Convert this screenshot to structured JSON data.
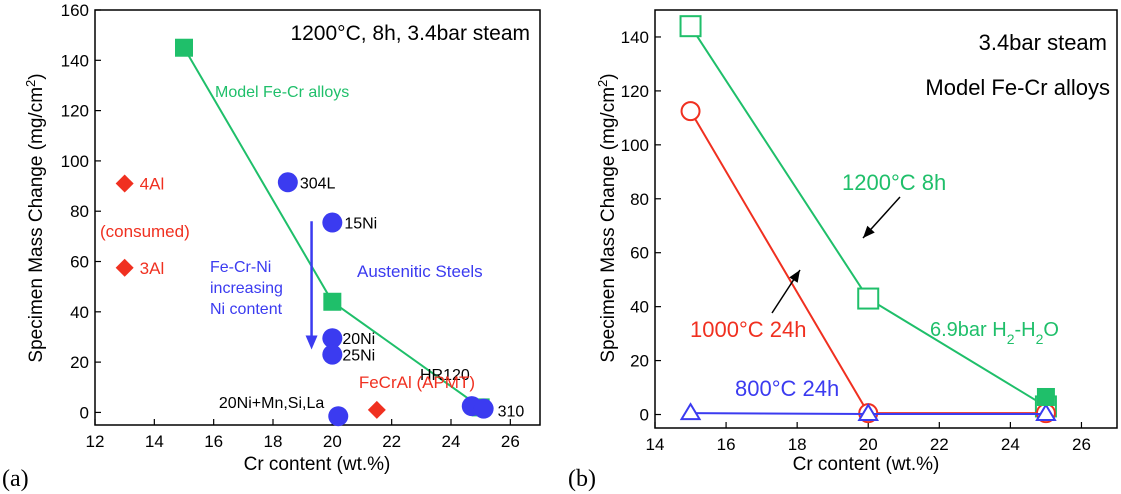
{
  "figure": {
    "panel_a_label": "(a)",
    "panel_b_label": "(b)"
  },
  "colors": {
    "green": "#1fbf6a",
    "blue": "#3b3bf0",
    "red": "#f03020"
  },
  "chart_data": [
    {
      "type": "scatter",
      "panel": "(a)",
      "xlabel": "Cr content (wt.%)",
      "ylabel": "Specimen Mass Change (mg/cm²)",
      "xlim": [
        12,
        27
      ],
      "ylim": [
        -5,
        160
      ],
      "xticks": [
        12,
        14,
        16,
        18,
        20,
        22,
        24,
        26
      ],
      "yticks": [
        0,
        20,
        40,
        60,
        80,
        100,
        120,
        140,
        160
      ],
      "title": "1200°C, 8h, 3.4bar steam",
      "grid": false,
      "series": [
        {
          "name": "Model Fe-Cr alloys",
          "marker": "square",
          "color": "#1fbf6a",
          "line": true,
          "points": [
            {
              "x": 15,
              "y": 145
            },
            {
              "x": 20,
              "y": 44
            },
            {
              "x": 25,
              "y": 2
            }
          ]
        },
        {
          "name": "Austenitic Steels",
          "marker": "circle",
          "color": "#3b3bf0",
          "line": false,
          "points": [
            {
              "x": 18.5,
              "y": 91.5,
              "label": "304L"
            },
            {
              "x": 20,
              "y": 75.5,
              "label": "15Ni"
            },
            {
              "x": 20,
              "y": 29.5,
              "label": "20Ni"
            },
            {
              "x": 20,
              "y": 23,
              "label": "25Ni"
            },
            {
              "x": 20.2,
              "y": -1.5,
              "label": "20Ni+Mn,Si,La"
            },
            {
              "x": 24.7,
              "y": 2.5,
              "label": "HR120"
            },
            {
              "x": 25.1,
              "y": 1.5,
              "label": "310"
            }
          ]
        },
        {
          "name": "",
          "marker": "diamond",
          "color": "#f03020",
          "line": false,
          "points": [
            {
              "x": 13,
              "y": 91,
              "label": "4Al"
            },
            {
              "x": 13,
              "y": 57.5,
              "label": "3Al"
            },
            {
              "x": 21.5,
              "y": 1,
              "label": "FeCrAl (APMT)"
            }
          ]
        }
      ],
      "annotations": {
        "consumed": "(consumed)",
        "austenitic": "Austenitic Steels",
        "model_fecr": "Model Fe-Cr alloys",
        "arrow_text_1": "Fe-Cr-Ni",
        "arrow_text_2": "increasing",
        "arrow_text_3": "Ni content",
        "arrow_from": {
          "x": 19.3,
          "y": 76
        },
        "arrow_to": {
          "x": 19.3,
          "y": 25
        }
      }
    },
    {
      "type": "line",
      "panel": "(b)",
      "xlabel": "Cr content (wt.%)",
      "ylabel": "Specimen Mass Change (mg/cm²)",
      "xlim": [
        14,
        27
      ],
      "ylim": [
        -5,
        150
      ],
      "xticks": [
        14,
        16,
        18,
        20,
        22,
        24,
        26
      ],
      "yticks": [
        0,
        20,
        40,
        60,
        80,
        100,
        120,
        140
      ],
      "title_line1": "3.4bar steam",
      "title_line2": "Model Fe-Cr alloys",
      "grid": false,
      "series": [
        {
          "name": "1200°C 8h",
          "marker": "square-open",
          "color": "#1fbf6a",
          "points": [
            {
              "x": 15,
              "y": 144
            },
            {
              "x": 20,
              "y": 43
            },
            {
              "x": 25,
              "y": 3
            }
          ]
        },
        {
          "name": "1000°C 24h",
          "marker": "circle-open",
          "color": "#f03020",
          "points": [
            {
              "x": 15,
              "y": 112.5
            },
            {
              "x": 20,
              "y": 0.5
            },
            {
              "x": 25,
              "y": 0.5
            }
          ]
        },
        {
          "name": "800°C 24h",
          "marker": "triangle-open",
          "color": "#3b3bf0",
          "points": [
            {
              "x": 15,
              "y": 0.5
            },
            {
              "x": 20,
              "y": 0.2
            },
            {
              "x": 25,
              "y": 0.2
            }
          ]
        },
        {
          "name": "6.9bar H₂-H₂O",
          "marker": "square",
          "color": "#1fbf6a",
          "points": [
            {
              "x": 25,
              "y": 6.5
            }
          ]
        }
      ],
      "labels": {
        "s1200": "1200°C 8h",
        "s1000": "1000°C 24h",
        "s800": "800°C 24h",
        "h2_prefix": "6.9bar H",
        "h2_sub1": "2",
        "h2_mid": "-H",
        "h2_sub2": "2",
        "h2_suffix": "O"
      }
    }
  ]
}
